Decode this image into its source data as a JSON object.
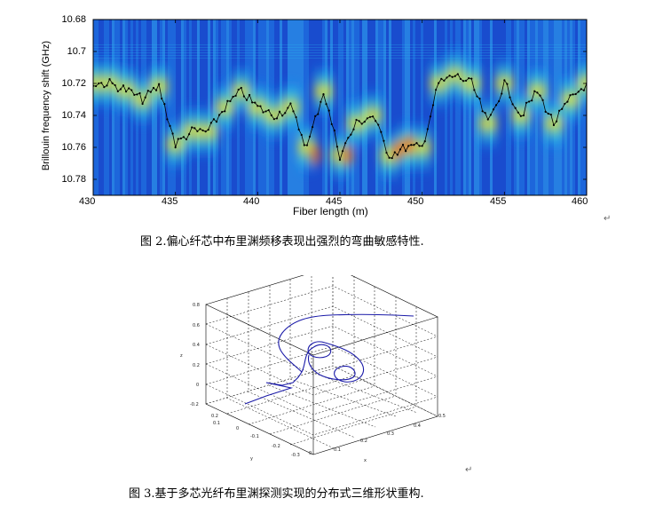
{
  "figure2": {
    "ylabel": "Brillouin frequency shift (GHz)",
    "xlabel": "Fiber length (m)",
    "y_ticks": [
      "10.68",
      "10.7",
      "10.72",
      "10.74",
      "10.76",
      "10.78"
    ],
    "x_ticks": [
      "430",
      "435",
      "440",
      "445",
      "450",
      "455",
      "460"
    ],
    "caption": "图 2.偏心纤芯中布里渊频移表现出强烈的弯曲敏感特性.",
    "caption_mark": "↵"
  },
  "figure3": {
    "z_label": "z",
    "y_label": "y",
    "x_label": "x",
    "z_ticks": [
      "0.8",
      "0.6",
      "0.4",
      "0.2",
      "0",
      "-0.2"
    ],
    "y_ticks": [
      "0.2",
      "0.1",
      "0",
      "-0.1",
      "-0.2",
      "-0.3"
    ],
    "x_ticks": [
      "0",
      "0.1",
      "0.2",
      "0.3",
      "0.4",
      "0.5"
    ],
    "caption": "图 3.基于多芯光纤布里渊探测实现的分布式三维形状重构.",
    "caption_mark": "↵"
  },
  "chart_data": [
    {
      "type": "heatmap",
      "title": "",
      "xlabel": "Fiber length (m)",
      "ylabel": "Brillouin frequency shift (GHz)",
      "xlim": [
        430,
        460
      ],
      "ylim": [
        10.68,
        10.79
      ],
      "x_ticks": [
        430,
        435,
        440,
        445,
        450,
        455,
        460
      ],
      "y_ticks": [
        10.68,
        10.7,
        10.72,
        10.74,
        10.76,
        10.78
      ],
      "colormap": "jet",
      "peak_trace": {
        "x": [
          430,
          431,
          432,
          433,
          434,
          435,
          436,
          437,
          438,
          439,
          440,
          441,
          442,
          443,
          444,
          445,
          446,
          447,
          448,
          449,
          450,
          451,
          452,
          453,
          454,
          455,
          456,
          457,
          458,
          459,
          460
        ],
        "y": [
          10.72,
          10.72,
          10.724,
          10.73,
          10.722,
          10.758,
          10.75,
          10.75,
          10.735,
          10.725,
          10.735,
          10.74,
          10.735,
          10.76,
          10.725,
          10.765,
          10.745,
          10.74,
          10.765,
          10.76,
          10.76,
          10.72,
          10.715,
          10.72,
          10.745,
          10.72,
          10.74,
          10.725,
          10.745,
          10.73,
          10.72
        ]
      }
    },
    {
      "type": "line3d",
      "x_range": [
        0,
        0.5
      ],
      "y_range": [
        -0.3,
        0.2
      ],
      "z_range": [
        -0.2,
        0.8
      ],
      "grid": true
    }
  ]
}
